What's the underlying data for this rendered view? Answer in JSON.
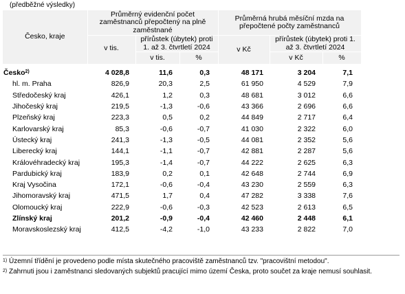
{
  "caption": "(předběžné výsledky)",
  "header": {
    "region_label": "Česko, kraje",
    "group1_label": "Průměrný evidenční počet zaměstnanců přepočtený na plně zaměstnané",
    "group2_label": "Průměrná hrubá měsíční mzda na přepočtené počty zaměstnanců",
    "g1_value_label": "v tis.",
    "g1_change_label": "přírůstek (úbytek) proti 1. až 3. čtvrtletí 2024",
    "g1_change_abs": "v tis.",
    "g1_change_pct": "%",
    "g2_value_label": "v Kč",
    "g2_change_label": "přírůstek (úbytek) proti 1. až 3. čtvrtletí 2024",
    "g2_change_abs": "v Kč",
    "g2_change_pct": "%"
  },
  "rows": [
    {
      "name": "Česko",
      "sup": "2)",
      "bold": true,
      "cz": true,
      "v": [
        "4 028,8",
        "11,6",
        "0,3",
        "48 171",
        "3 204",
        "7,1"
      ]
    },
    {
      "name": "hl. m. Praha",
      "v": [
        "826,9",
        "20,3",
        "2,5",
        "61 950",
        "4 529",
        "7,9"
      ]
    },
    {
      "name": "Středočeský kraj",
      "v": [
        "426,1",
        "1,2",
        "0,3",
        "48 681",
        "3 012",
        "6,6"
      ]
    },
    {
      "name": "Jihočeský kraj",
      "v": [
        "219,5",
        "-1,3",
        "-0,6",
        "43 366",
        "2 696",
        "6,6"
      ]
    },
    {
      "name": "Plzeňský kraj",
      "v": [
        "223,3",
        "0,5",
        "0,2",
        "44 849",
        "2 717",
        "6,4"
      ]
    },
    {
      "name": "Karlovarský kraj",
      "v": [
        "85,3",
        "-0,6",
        "-0,7",
        "41 030",
        "2 322",
        "6,0"
      ]
    },
    {
      "name": "Ústecký kraj",
      "v": [
        "241,3",
        "-1,3",
        "-0,5",
        "44 081",
        "2 352",
        "5,6"
      ]
    },
    {
      "name": "Liberecký kraj",
      "v": [
        "144,1",
        "-1,1",
        "-0,7",
        "42 881",
        "2 287",
        "5,6"
      ]
    },
    {
      "name": "Královéhradecký kraj",
      "v": [
        "195,3",
        "-1,4",
        "-0,7",
        "44 222",
        "2 625",
        "6,3"
      ]
    },
    {
      "name": "Pardubický kraj",
      "v": [
        "183,9",
        "0,2",
        "0,1",
        "42 648",
        "2 744",
        "6,9"
      ]
    },
    {
      "name": "Kraj Vysočina",
      "v": [
        "172,1",
        "-0,6",
        "-0,4",
        "43 230",
        "2 559",
        "6,3"
      ]
    },
    {
      "name": "Jihomoravský kraj",
      "v": [
        "471,5",
        "1,7",
        "0,4",
        "47 282",
        "3 338",
        "7,6"
      ]
    },
    {
      "name": "Olomoucký kraj",
      "v": [
        "222,9",
        "-0,6",
        "-0,3",
        "42 523",
        "2 613",
        "6,5"
      ]
    },
    {
      "name": "Zlínský kraj",
      "bold": true,
      "v": [
        "201,2",
        "-0,9",
        "-0,4",
        "42 460",
        "2 448",
        "6,1"
      ]
    },
    {
      "name": "Moravskoslezský kraj",
      "v": [
        "412,5",
        "-4,2",
        "-1,0",
        "43 233",
        "2 822",
        "7,0"
      ]
    }
  ],
  "notes": [
    {
      "sup": "1)",
      "text": "Územní třídění je provedeno podle místa skutečného pracoviště zaměstnanců tzv. \"pracovištní metodou\"."
    },
    {
      "sup": "2)",
      "text": "Zahrnuti jsou i zaměstnanci sledovaných subjektů pracující mimo území Česka, proto součet za kraje nemusí souhlasit."
    }
  ]
}
